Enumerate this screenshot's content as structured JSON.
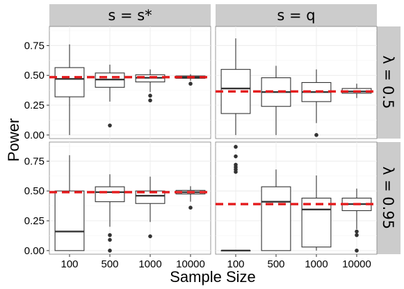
{
  "chart_data": {
    "type": "boxplot",
    "xlabel": "Sample Size",
    "ylabel": "Power",
    "categories": [
      "100",
      "500",
      "1000",
      "10000"
    ],
    "yticks": [
      0.0,
      0.25,
      0.5,
      0.75
    ],
    "ytick_labels": [
      "0.00",
      "0.25",
      "0.50",
      "0.75"
    ],
    "ylim": [
      -0.03,
      0.91
    ],
    "col_strips": [
      "s = s*",
      "s = q"
    ],
    "row_strips": [
      "λ = 0.5",
      "λ = 0.95"
    ],
    "grid": true,
    "panels": [
      {
        "row": 0,
        "col": 0,
        "reference_line": 0.485,
        "boxes": [
          {
            "category": "100",
            "min": 0.0,
            "q1": 0.32,
            "median": 0.47,
            "q3": 0.565,
            "max": 0.76,
            "outliers": []
          },
          {
            "category": "500",
            "min": 0.28,
            "q1": 0.4,
            "median": 0.465,
            "q3": 0.52,
            "max": 0.59,
            "outliers": [
              0.08
            ]
          },
          {
            "category": "1000",
            "min": 0.36,
            "q1": 0.445,
            "median": 0.48,
            "q3": 0.505,
            "max": 0.55,
            "outliers": [
              0.33,
              0.29
            ]
          },
          {
            "category": "10000",
            "min": 0.455,
            "q1": 0.475,
            "median": 0.485,
            "q3": 0.495,
            "max": 0.51,
            "outliers": [
              0.43
            ]
          }
        ]
      },
      {
        "row": 0,
        "col": 1,
        "reference_line": 0.365,
        "boxes": [
          {
            "category": "100",
            "min": 0.0,
            "q1": 0.18,
            "median": 0.39,
            "q3": 0.55,
            "max": 0.81,
            "outliers": []
          },
          {
            "category": "500",
            "min": 0.0,
            "q1": 0.24,
            "median": 0.36,
            "q3": 0.48,
            "max": 0.58,
            "outliers": []
          },
          {
            "category": "1000",
            "min": 0.1,
            "q1": 0.28,
            "median": 0.36,
            "q3": 0.44,
            "max": 0.55,
            "outliers": [
              0.0
            ]
          },
          {
            "category": "10000",
            "min": 0.31,
            "q1": 0.35,
            "median": 0.365,
            "q3": 0.39,
            "max": 0.43,
            "outliers": []
          }
        ]
      },
      {
        "row": 1,
        "col": 0,
        "reference_line": 0.49,
        "boxes": [
          {
            "category": "100",
            "min": 0.0,
            "q1": 0.0,
            "median": 0.16,
            "q3": 0.5,
            "max": 0.8,
            "outliers": []
          },
          {
            "category": "500",
            "min": 0.2,
            "q1": 0.41,
            "median": 0.49,
            "q3": 0.535,
            "max": 0.64,
            "outliers": [
              0.13,
              0.09,
              0.0
            ]
          },
          {
            "category": "1000",
            "min": 0.24,
            "q1": 0.395,
            "median": 0.46,
            "q3": 0.5,
            "max": 0.62,
            "outliers": [
              0.12
            ]
          },
          {
            "category": "10000",
            "min": 0.41,
            "q1": 0.475,
            "median": 0.49,
            "q3": 0.505,
            "max": 0.54,
            "outliers": [
              0.36
            ]
          }
        ]
      },
      {
        "row": 1,
        "col": 1,
        "reference_line": 0.39,
        "boxes": [
          {
            "category": "100",
            "min": 0.0,
            "q1": 0.0,
            "median": 0.0,
            "q3": 0.0,
            "max": 0.0,
            "outliers": [
              0.87,
              0.79,
              0.72,
              0.7,
              0.68,
              0.66
            ]
          },
          {
            "category": "500",
            "min": 0.0,
            "q1": 0.0,
            "median": 0.41,
            "q3": 0.535,
            "max": 0.68,
            "outliers": []
          },
          {
            "category": "1000",
            "min": 0.0,
            "q1": 0.03,
            "median": 0.345,
            "q3": 0.44,
            "max": 0.63,
            "outliers": []
          },
          {
            "category": "10000",
            "min": 0.18,
            "q1": 0.335,
            "median": 0.39,
            "q3": 0.44,
            "max": 0.52,
            "outliers": [
              0.16,
              0.13,
              0.0
            ]
          }
        ]
      }
    ]
  }
}
